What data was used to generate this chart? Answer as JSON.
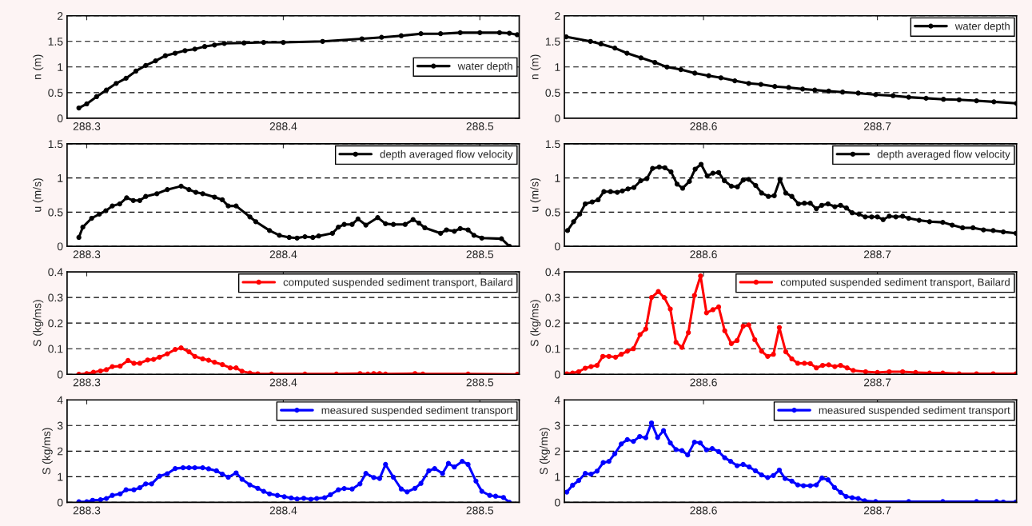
{
  "chart_data": [
    {
      "type": "line",
      "ylabel": "n (m)",
      "xlim": [
        288.29,
        288.52
      ],
      "xticks": [
        288.3,
        288.4,
        288.5
      ],
      "ylim": [
        0,
        2
      ],
      "yticks": [
        0,
        0.5,
        1,
        1.5,
        2
      ],
      "grid": "y",
      "legend": "right",
      "marker": "circle",
      "line_style": "solid",
      "series": [
        {
          "name": "water depth",
          "color": "#000000",
          "x": [
            288.296,
            288.3,
            288.305,
            288.31,
            288.315,
            288.32,
            288.325,
            288.33,
            288.335,
            288.34,
            288.345,
            288.35,
            288.355,
            288.36,
            288.365,
            288.37,
            288.38,
            288.39,
            288.4,
            288.42,
            288.44,
            288.45,
            288.46,
            288.47,
            288.48,
            288.49,
            288.5,
            288.51,
            288.515,
            288.519
          ],
          "values": [
            0.2,
            0.28,
            0.42,
            0.55,
            0.68,
            0.78,
            0.92,
            1.03,
            1.12,
            1.22,
            1.27,
            1.32,
            1.35,
            1.4,
            1.43,
            1.46,
            1.47,
            1.48,
            1.48,
            1.5,
            1.55,
            1.58,
            1.61,
            1.65,
            1.65,
            1.67,
            1.67,
            1.67,
            1.66,
            1.63
          ]
        }
      ]
    },
    {
      "type": "line",
      "ylabel": "n (m)",
      "xlim": [
        288.52,
        288.78
      ],
      "xticks": [
        288.6,
        288.7
      ],
      "ylim": [
        0,
        2
      ],
      "yticks": [
        0,
        0.5,
        1,
        1.5,
        2
      ],
      "grid": "y",
      "legend": "top right",
      "marker": "circle",
      "line_style": "solid",
      "series": [
        {
          "name": "water depth",
          "color": "#000000",
          "x": [
            288.521,
            288.535,
            288.541,
            288.549,
            288.556,
            288.564,
            288.572,
            288.579,
            288.587,
            288.595,
            288.603,
            288.61,
            288.618,
            288.626,
            288.633,
            288.641,
            288.649,
            288.657,
            288.664,
            288.672,
            288.68,
            288.689,
            288.699,
            288.709,
            288.718,
            288.728,
            288.738,
            288.747,
            288.757,
            288.767,
            288.78
          ],
          "values": [
            1.59,
            1.5,
            1.45,
            1.37,
            1.27,
            1.18,
            1.09,
            1.0,
            0.95,
            0.88,
            0.83,
            0.79,
            0.73,
            0.68,
            0.66,
            0.62,
            0.6,
            0.57,
            0.55,
            0.53,
            0.51,
            0.49,
            0.46,
            0.44,
            0.41,
            0.39,
            0.37,
            0.36,
            0.34,
            0.32,
            0.29
          ]
        }
      ]
    },
    {
      "type": "line",
      "ylabel": "u (m/s)",
      "xlim": [
        288.29,
        288.52
      ],
      "xticks": [
        288.3,
        288.4,
        288.5
      ],
      "ylim": [
        0,
        1.5
      ],
      "yticks": [
        0,
        0.5,
        1,
        1.5
      ],
      "grid": "y",
      "legend": "top right",
      "marker": "circle",
      "line_style": "solid",
      "series": [
        {
          "name": "depth averaged flow velocity",
          "color": "#000000",
          "x": [
            288.296,
            288.298,
            288.3025,
            288.3064,
            288.3097,
            288.313,
            288.3168,
            288.3203,
            288.3237,
            288.327,
            288.33,
            288.3357,
            288.341,
            288.348,
            288.352,
            288.3555,
            288.359,
            288.365,
            288.369,
            288.372,
            288.376,
            288.383,
            288.386,
            288.393,
            288.398,
            288.403,
            288.407,
            288.411,
            288.415,
            288.418,
            288.425,
            288.428,
            288.431,
            288.435,
            288.438,
            288.442,
            288.448,
            288.452,
            288.456,
            288.462,
            288.466,
            288.469,
            288.472,
            288.48,
            288.483,
            288.487,
            288.49,
            288.494,
            288.497,
            288.501,
            288.511,
            288.515
          ],
          "values": [
            0.13,
            0.28,
            0.41,
            0.47,
            0.52,
            0.59,
            0.62,
            0.71,
            0.67,
            0.67,
            0.73,
            0.77,
            0.83,
            0.88,
            0.83,
            0.79,
            0.77,
            0.72,
            0.68,
            0.59,
            0.59,
            0.43,
            0.36,
            0.23,
            0.16,
            0.13,
            0.12,
            0.14,
            0.13,
            0.15,
            0.19,
            0.28,
            0.32,
            0.32,
            0.4,
            0.31,
            0.42,
            0.33,
            0.32,
            0.32,
            0.39,
            0.34,
            0.27,
            0.19,
            0.24,
            0.22,
            0.26,
            0.24,
            0.16,
            0.12,
            0.11,
            0.0
          ]
        }
      ]
    },
    {
      "type": "line",
      "ylabel": "u (m/s)",
      "xlim": [
        288.52,
        288.78
      ],
      "xticks": [
        288.6,
        288.7
      ],
      "ylim": [
        0,
        1.5
      ],
      "yticks": [
        0,
        0.5,
        1,
        1.5
      ],
      "grid": "y",
      "legend": "top right",
      "marker": "circle",
      "line_style": "solid",
      "series": [
        {
          "name": "depth averaged flow velocity",
          "color": "#000000",
          "x": [
            288.5218,
            288.5253,
            288.5288,
            288.532,
            288.536,
            288.5394,
            288.5427,
            288.5465,
            288.5504,
            288.5533,
            288.5566,
            288.56,
            288.5639,
            288.5674,
            288.5707,
            288.5745,
            288.5778,
            288.5813,
            288.5848,
            288.588,
            288.5919,
            288.5952,
            288.5986,
            288.6021,
            288.6054,
            288.6087,
            288.612,
            288.616,
            288.6195,
            288.6228,
            288.626,
            288.63,
            288.6334,
            288.6373,
            288.6407,
            288.644,
            288.6473,
            288.6508,
            288.6546,
            288.658,
            288.6614,
            288.6649,
            288.668,
            288.6716,
            288.6755,
            288.6788,
            288.6822,
            288.6855,
            288.6894,
            288.693,
            288.6967,
            288.7,
            288.7033,
            288.7068,
            288.7106,
            288.7145,
            288.718,
            288.724,
            288.73,
            288.7376,
            288.743,
            288.749,
            288.755,
            288.761,
            288.7666,
            288.7724,
            288.7797
          ],
          "values": [
            0.23,
            0.36,
            0.47,
            0.62,
            0.65,
            0.68,
            0.8,
            0.8,
            0.79,
            0.81,
            0.84,
            0.86,
            0.96,
            0.99,
            1.14,
            1.16,
            1.15,
            1.09,
            0.91,
            0.85,
            0.95,
            1.13,
            1.2,
            1.03,
            1.07,
            1.08,
            0.96,
            0.88,
            0.87,
            0.97,
            0.98,
            0.89,
            0.78,
            0.73,
            0.74,
            0.98,
            0.78,
            0.73,
            0.62,
            0.63,
            0.63,
            0.55,
            0.6,
            0.62,
            0.58,
            0.6,
            0.56,
            0.49,
            0.47,
            0.43,
            0.43,
            0.43,
            0.39,
            0.44,
            0.43,
            0.44,
            0.41,
            0.38,
            0.36,
            0.35,
            0.31,
            0.27,
            0.27,
            0.24,
            0.23,
            0.21,
            0.19
          ]
        }
      ]
    },
    {
      "type": "line",
      "ylabel": "S (kg/ms)",
      "xlim": [
        288.29,
        288.52
      ],
      "xticks": [
        288.3,
        288.4,
        288.5
      ],
      "ylim": [
        0,
        0.4
      ],
      "yticks": [
        0,
        0.1,
        0.2,
        0.3,
        0.4
      ],
      "grid": "y",
      "legend": "top right",
      "marker": "circle",
      "line_style": "solid",
      "series": [
        {
          "name": "computed suspended sediment transport, Bailard",
          "color": "#ff0000",
          "x": [
            288.296,
            288.3,
            288.3034,
            288.307,
            288.31,
            288.313,
            288.317,
            288.321,
            288.324,
            288.327,
            288.331,
            288.334,
            288.337,
            288.341,
            288.345,
            288.348,
            288.352,
            288.355,
            288.359,
            288.362,
            288.365,
            288.369,
            288.373,
            288.376,
            288.379,
            288.383,
            288.387,
            288.394,
            288.411,
            288.427,
            288.439,
            288.443,
            288.446,
            288.449,
            288.452,
            288.467,
            288.471,
            288.494,
            288.519
          ],
          "values": [
            0.0,
            0.003,
            0.008,
            0.013,
            0.018,
            0.03,
            0.032,
            0.054,
            0.043,
            0.043,
            0.056,
            0.058,
            0.067,
            0.08,
            0.097,
            0.103,
            0.088,
            0.07,
            0.06,
            0.055,
            0.047,
            0.038,
            0.025,
            0.025,
            0.012,
            0.005,
            0.002,
            0.001,
            0.001,
            0.001,
            0.003,
            0.001,
            0.003,
            0.003,
            0.001,
            0.003,
            0.001,
            0.001,
            0.0
          ]
        }
      ]
    },
    {
      "type": "line",
      "ylabel": "S (kg/ms)",
      "xlim": [
        288.52,
        288.78
      ],
      "xticks": [
        288.6,
        288.7
      ],
      "ylim": [
        0,
        0.4
      ],
      "yticks": [
        0,
        0.1,
        0.2,
        0.3,
        0.4
      ],
      "grid": "y",
      "legend": "top right",
      "marker": "circle",
      "line_style": "solid",
      "series": [
        {
          "name": "computed suspended sediment transport, Bailard",
          "color": "#ff0000",
          "x": [
            288.5214,
            288.5247,
            288.5282,
            288.532,
            288.5353,
            288.5388,
            288.5421,
            288.5456,
            288.5494,
            288.5527,
            288.5562,
            288.5597,
            288.5635,
            288.5668,
            288.5701,
            288.574,
            288.5774,
            288.5809,
            288.5842,
            288.5876,
            288.5913,
            288.5948,
            288.5983,
            288.6017,
            288.6054,
            288.6087,
            288.6122,
            288.616,
            288.6193,
            288.6228,
            288.626,
            288.6295,
            288.6334,
            288.6369,
            288.6402,
            288.6436,
            288.6473,
            288.6508,
            288.6542,
            288.658,
            288.6614,
            288.6649,
            288.6685,
            288.672,
            288.6755,
            288.6788,
            288.6826,
            288.6861,
            288.6932,
            288.7,
            288.7068,
            288.7145,
            288.722,
            288.73,
            288.7376,
            288.747,
            288.757,
            288.7666,
            288.7797
          ],
          "values": [
            0.002,
            0.005,
            0.01,
            0.024,
            0.03,
            0.035,
            0.07,
            0.07,
            0.067,
            0.078,
            0.09,
            0.1,
            0.155,
            0.177,
            0.3,
            0.323,
            0.3,
            0.255,
            0.125,
            0.105,
            0.163,
            0.308,
            0.384,
            0.24,
            0.252,
            0.263,
            0.17,
            0.12,
            0.132,
            0.188,
            0.193,
            0.135,
            0.09,
            0.07,
            0.078,
            0.183,
            0.088,
            0.06,
            0.043,
            0.043,
            0.042,
            0.025,
            0.035,
            0.037,
            0.03,
            0.035,
            0.025,
            0.015,
            0.01,
            0.007,
            0.01,
            0.01,
            0.007,
            0.005,
            0.005,
            0.002,
            0.002,
            0.002,
            0.002
          ]
        }
      ]
    },
    {
      "type": "line",
      "ylabel": "S (kg/ms)",
      "xlim": [
        288.29,
        288.52
      ],
      "xticks": [
        288.3,
        288.4,
        288.5
      ],
      "ylim": [
        0,
        4
      ],
      "yticks": [
        0,
        1,
        2,
        3,
        4
      ],
      "grid": "y",
      "legend": "top right",
      "marker": "circle",
      "line_style": "solid",
      "series": [
        {
          "name": "measured suspended sediment transport",
          "color": "#0000ff",
          "x": [
            288.296,
            288.3,
            288.303,
            288.307,
            288.31,
            288.313,
            288.317,
            288.32,
            288.324,
            288.327,
            288.33,
            288.333,
            288.337,
            288.341,
            288.345,
            288.349,
            288.352,
            288.355,
            288.359,
            288.362,
            288.366,
            288.369,
            288.372,
            288.376,
            288.379,
            288.383,
            288.387,
            288.39,
            288.393,
            288.397,
            288.4005,
            288.404,
            288.407,
            288.4104,
            288.414,
            288.417,
            288.421,
            288.424,
            288.428,
            288.431,
            288.435,
            288.439,
            288.442,
            288.446,
            288.449,
            288.452,
            288.456,
            288.46,
            288.463,
            288.467,
            288.47,
            288.474,
            288.477,
            288.481,
            288.484,
            288.487,
            288.491,
            288.494,
            288.498,
            288.501,
            288.505,
            288.508,
            288.512,
            288.515
          ],
          "values": [
            0.02,
            0.02,
            0.08,
            0.1,
            0.15,
            0.27,
            0.33,
            0.49,
            0.49,
            0.57,
            0.72,
            0.72,
            1.02,
            1.12,
            1.32,
            1.35,
            1.35,
            1.35,
            1.35,
            1.31,
            1.23,
            1.1,
            0.98,
            1.15,
            0.9,
            0.68,
            0.55,
            0.43,
            0.33,
            0.27,
            0.22,
            0.17,
            0.13,
            0.16,
            0.12,
            0.15,
            0.18,
            0.3,
            0.49,
            0.54,
            0.52,
            0.72,
            1.13,
            0.97,
            0.93,
            1.48,
            0.98,
            0.52,
            0.41,
            0.55,
            0.74,
            1.23,
            1.32,
            1.13,
            1.52,
            1.38,
            1.6,
            1.48,
            0.83,
            0.43,
            0.27,
            0.24,
            0.19,
            0.0
          ]
        }
      ]
    },
    {
      "type": "line",
      "ylabel": "S (kg/ms)",
      "xlim": [
        288.52,
        288.78
      ],
      "xticks": [
        288.6,
        288.7
      ],
      "ylim": [
        0,
        4
      ],
      "yticks": [
        0,
        1,
        2,
        3,
        4
      ],
      "grid": "y",
      "legend": "top right",
      "marker": "circle",
      "line_style": "solid",
      "series": [
        {
          "name": "measured suspended sediment transport",
          "color": "#0000ff",
          "x": [
            288.5214,
            288.5247,
            288.5282,
            288.532,
            288.5353,
            288.5388,
            288.5423,
            288.5456,
            288.549,
            288.5527,
            288.5562,
            288.5597,
            288.5633,
            288.5668,
            288.5701,
            288.5736,
            288.577,
            288.5809,
            288.5842,
            288.5876,
            288.5909,
            288.5948,
            288.5981,
            288.6017,
            288.605,
            288.6087,
            288.6122,
            288.6156,
            288.6193,
            288.6228,
            288.6263,
            288.6299,
            288.6334,
            288.6369,
            288.6402,
            288.6436,
            288.6469,
            288.6508,
            288.6542,
            288.6575,
            288.6614,
            288.6649,
            288.6681,
            288.6716,
            288.6753,
            288.6788,
            288.682,
            288.6855,
            288.689,
            288.6927,
            288.699,
            288.718,
            288.7376,
            288.757,
            288.7685,
            288.7724,
            288.7797
          ],
          "values": [
            0.4,
            0.67,
            0.85,
            1.13,
            1.1,
            1.22,
            1.55,
            1.6,
            1.9,
            2.28,
            2.45,
            2.38,
            2.57,
            2.52,
            3.1,
            2.53,
            2.8,
            2.32,
            2.06,
            2.02,
            1.85,
            2.35,
            2.32,
            2.05,
            2.1,
            1.98,
            1.74,
            1.6,
            1.43,
            1.48,
            1.38,
            1.23,
            1.07,
            0.97,
            1.05,
            1.26,
            0.93,
            0.83,
            0.68,
            0.65,
            0.65,
            0.68,
            0.95,
            0.88,
            0.58,
            0.39,
            0.23,
            0.18,
            0.15,
            0.06,
            0.03,
            0.03,
            0.03,
            0.03,
            0.03,
            0.01,
            0.01
          ]
        }
      ]
    }
  ]
}
